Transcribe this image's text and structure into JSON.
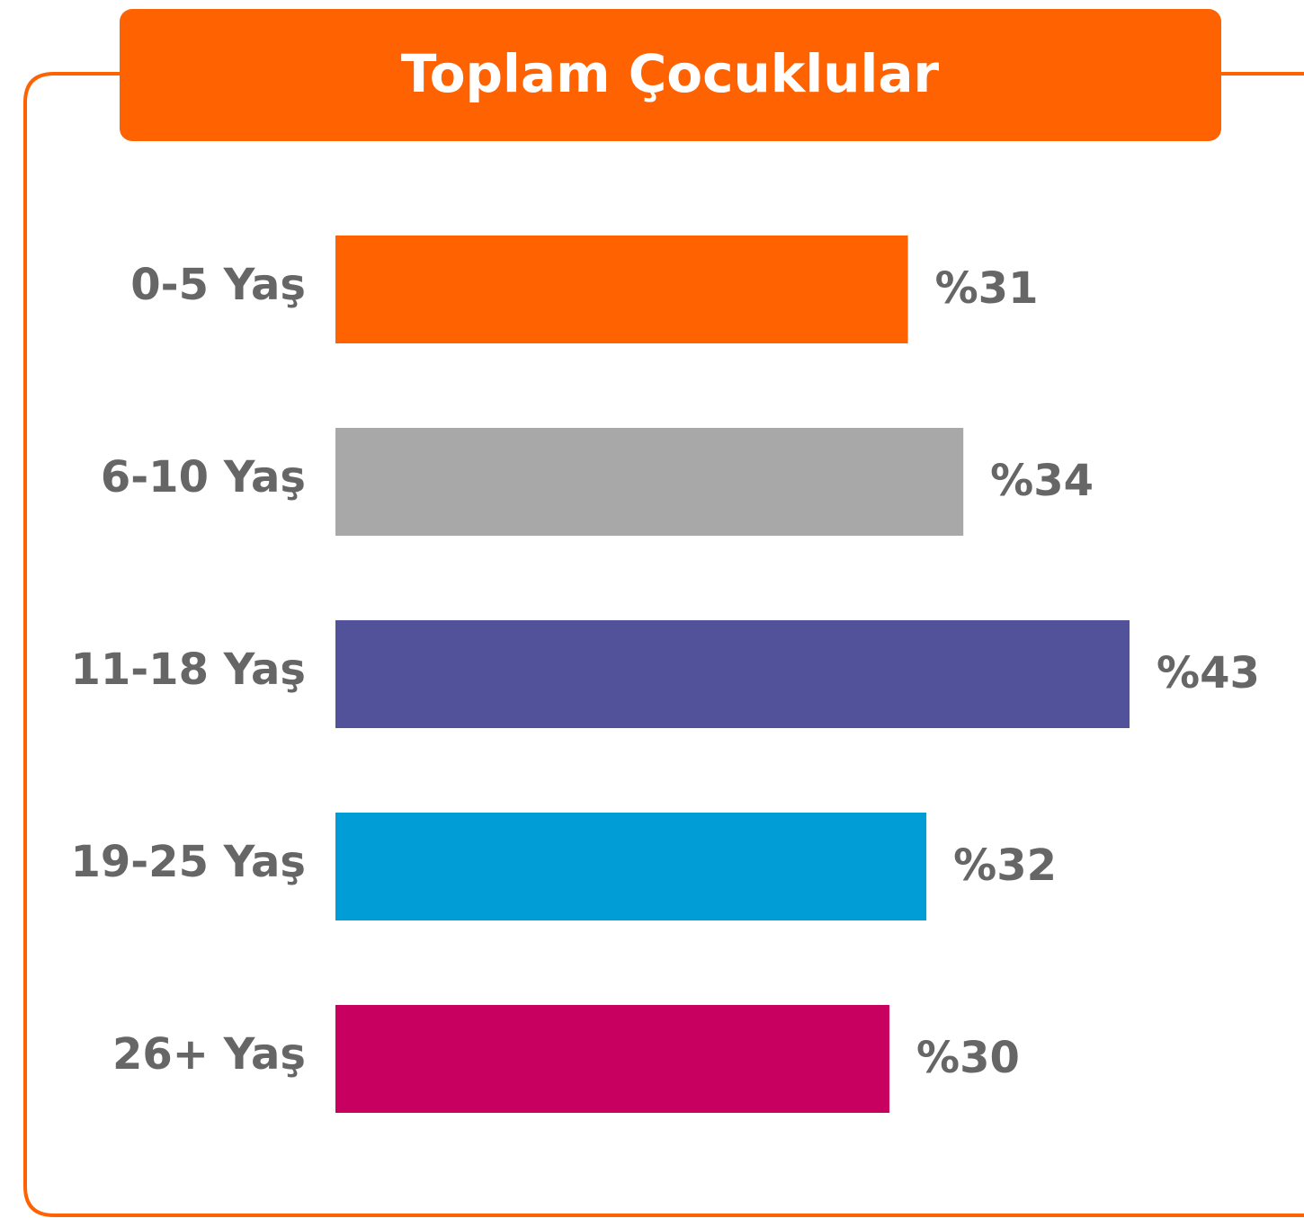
{
  "chart_data": {
    "type": "bar",
    "orientation": "horizontal",
    "title": "Toplam Çocuklular",
    "categories": [
      "0-5 Yaş",
      "6-10 Yaş",
      "11-18 Yaş",
      "19-25 Yaş",
      "26+ Yaş"
    ],
    "values": [
      31,
      34,
      43,
      32,
      30
    ],
    "value_labels": [
      "%31",
      "%34",
      "%43",
      "%32",
      "%30"
    ],
    "colors": [
      "#ff6200",
      "#a8a8a8",
      "#52529b",
      "#009dd6",
      "#c8005f"
    ]
  }
}
